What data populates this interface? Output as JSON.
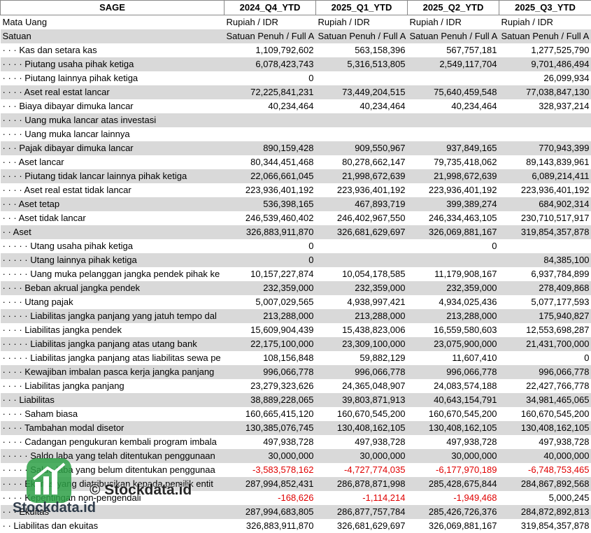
{
  "table": {
    "columns": [
      "SAGE",
      "2024_Q4_YTD",
      "2025_Q1_YTD",
      "2025_Q2_YTD",
      "2025_Q3_YTD"
    ],
    "rows": [
      [
        "Mata Uang",
        "Rupiah / IDR",
        "Rupiah / IDR",
        "Rupiah / IDR",
        "Rupiah / IDR"
      ],
      [
        "Satuan",
        "Satuan Penuh / Full A",
        "Satuan Penuh / Full A",
        "Satuan Penuh / Full A",
        "Satuan Penuh / Full A"
      ],
      [
        "· · · Kas dan setara kas",
        "1,109,792,602",
        "563,158,396",
        "567,757,181",
        "1,277,525,790"
      ],
      [
        "· · · · Piutang usaha pihak ketiga",
        "6,078,423,743",
        "5,316,513,805",
        "2,549,117,704",
        "9,701,486,494"
      ],
      [
        "· · · · Piutang lainnya pihak ketiga",
        "0",
        null,
        null,
        "26,099,934"
      ],
      [
        "· · · · Aset real estat lancar",
        "72,225,841,231",
        "73,449,204,515",
        "75,640,459,548",
        "77,038,847,130"
      ],
      [
        "· · · Biaya dibayar dimuka lancar",
        "40,234,464",
        "40,234,464",
        "40,234,464",
        "328,937,214"
      ],
      [
        "· · · · Uang muka lancar atas investasi",
        null,
        null,
        null,
        null
      ],
      [
        "· · · · Uang muka lancar lainnya",
        null,
        null,
        null,
        null
      ],
      [
        "· · · Pajak dibayar dimuka lancar",
        "890,159,428",
        "909,550,967",
        "937,849,165",
        "770,943,399"
      ],
      [
        "· · · Aset lancar",
        "80,344,451,468",
        "80,278,662,147",
        "79,735,418,062",
        "89,143,839,961"
      ],
      [
        "· · · · Piutang tidak lancar lainnya pihak ketiga",
        "22,066,661,045",
        "21,998,672,639",
        "21,998,672,639",
        "6,089,214,411"
      ],
      [
        "· · · · Aset real estat tidak lancar",
        "223,936,401,192",
        "223,936,401,192",
        "223,936,401,192",
        "223,936,401,192"
      ],
      [
        "· · · Aset tetap",
        "536,398,165",
        "467,893,719",
        "399,389,274",
        "684,902,314"
      ],
      [
        "· · · Aset tidak lancar",
        "246,539,460,402",
        "246,402,967,550",
        "246,334,463,105",
        "230,710,517,917"
      ],
      [
        "· · Aset",
        "326,883,911,870",
        "326,681,629,697",
        "326,069,881,167",
        "319,854,357,878"
      ],
      [
        "· · · · · Utang usaha pihak ketiga",
        "0",
        null,
        "0",
        null
      ],
      [
        "· · · · · Utang lainnya pihak ketiga",
        "0",
        null,
        null,
        "84,385,100"
      ],
      [
        "· · · · · Uang muka pelanggan jangka pendek pihak ke",
        "10,157,227,874",
        "10,054,178,585",
        "11,179,908,167",
        "6,937,784,899"
      ],
      [
        "· · · · Beban akrual jangka pendek",
        "232,359,000",
        "232,359,000",
        "232,359,000",
        "278,409,868"
      ],
      [
        "· · · · Utang pajak",
        "5,007,029,565",
        "4,938,997,421",
        "4,934,025,436",
        "5,077,177,593"
      ],
      [
        "· · · · · Liabilitas jangka panjang yang jatuh tempo dal",
        "213,288,000",
        "213,288,000",
        "213,288,000",
        "175,940,827"
      ],
      [
        "· · · · Liabilitas jangka pendek",
        "15,609,904,439",
        "15,438,823,006",
        "16,559,580,603",
        "12,553,698,287"
      ],
      [
        "· · · · · Liabilitas jangka panjang atas utang bank",
        "22,175,100,000",
        "23,309,100,000",
        "23,075,900,000",
        "21,431,700,000"
      ],
      [
        "· · · · · Liabilitas jangka panjang atas liabilitas sewa pe",
        "108,156,848",
        "59,882,129",
        "11,607,410",
        "0"
      ],
      [
        "· · · · Kewajiban imbalan pasca kerja jangka panjang",
        "996,066,778",
        "996,066,778",
        "996,066,778",
        "996,066,778"
      ],
      [
        "· · · · Liabilitas jangka panjang",
        "23,279,323,626",
        "24,365,048,907",
        "24,083,574,188",
        "22,427,766,778"
      ],
      [
        "· · · Liabilitas",
        "38,889,228,065",
        "39,803,871,913",
        "40,643,154,791",
        "34,981,465,065"
      ],
      [
        "· · · · Saham biasa",
        "160,665,415,120",
        "160,670,545,200",
        "160,670,545,200",
        "160,670,545,200"
      ],
      [
        "· · · · Tambahan modal disetor",
        "130,385,076,745",
        "130,408,162,105",
        "130,408,162,105",
        "130,408,162,105"
      ],
      [
        "· · · · Cadangan pengukuran kembali program imbala",
        "497,938,728",
        "497,938,728",
        "497,938,728",
        "497,938,728"
      ],
      [
        "· · · · · Saldo laba yang telah ditentukan penggunaan",
        "30,000,000",
        "30,000,000",
        "30,000,000",
        "40,000,000"
      ],
      [
        "· · · · · Saldo laba yang belum ditentukan penggunaa",
        "-3,583,578,162",
        "-4,727,774,035",
        "-6,177,970,189",
        "-6,748,753,465"
      ],
      [
        "· · · · Ekuitas yang diatribusikan kepada pemilik entit",
        "287,994,852,431",
        "286,878,871,998",
        "285,428,675,844",
        "284,867,892,568"
      ],
      [
        "· · · · Kepentingan non-pengendali",
        "-168,626",
        "-1,114,214",
        "-1,949,468",
        "5,000,245"
      ],
      [
        "· · · Ekuitas",
        "287,994,683,805",
        "286,877,757,784",
        "285,426,726,376",
        "284,872,892,813"
      ],
      [
        "· · Liabilitas dan ekuitas",
        "326,883,911,870",
        "326,681,629,697",
        "326,069,881,167",
        "319,854,357,878"
      ]
    ]
  },
  "watermark": {
    "brand": "Stockdata.id",
    "copyright": "© Stockdata.id"
  }
}
